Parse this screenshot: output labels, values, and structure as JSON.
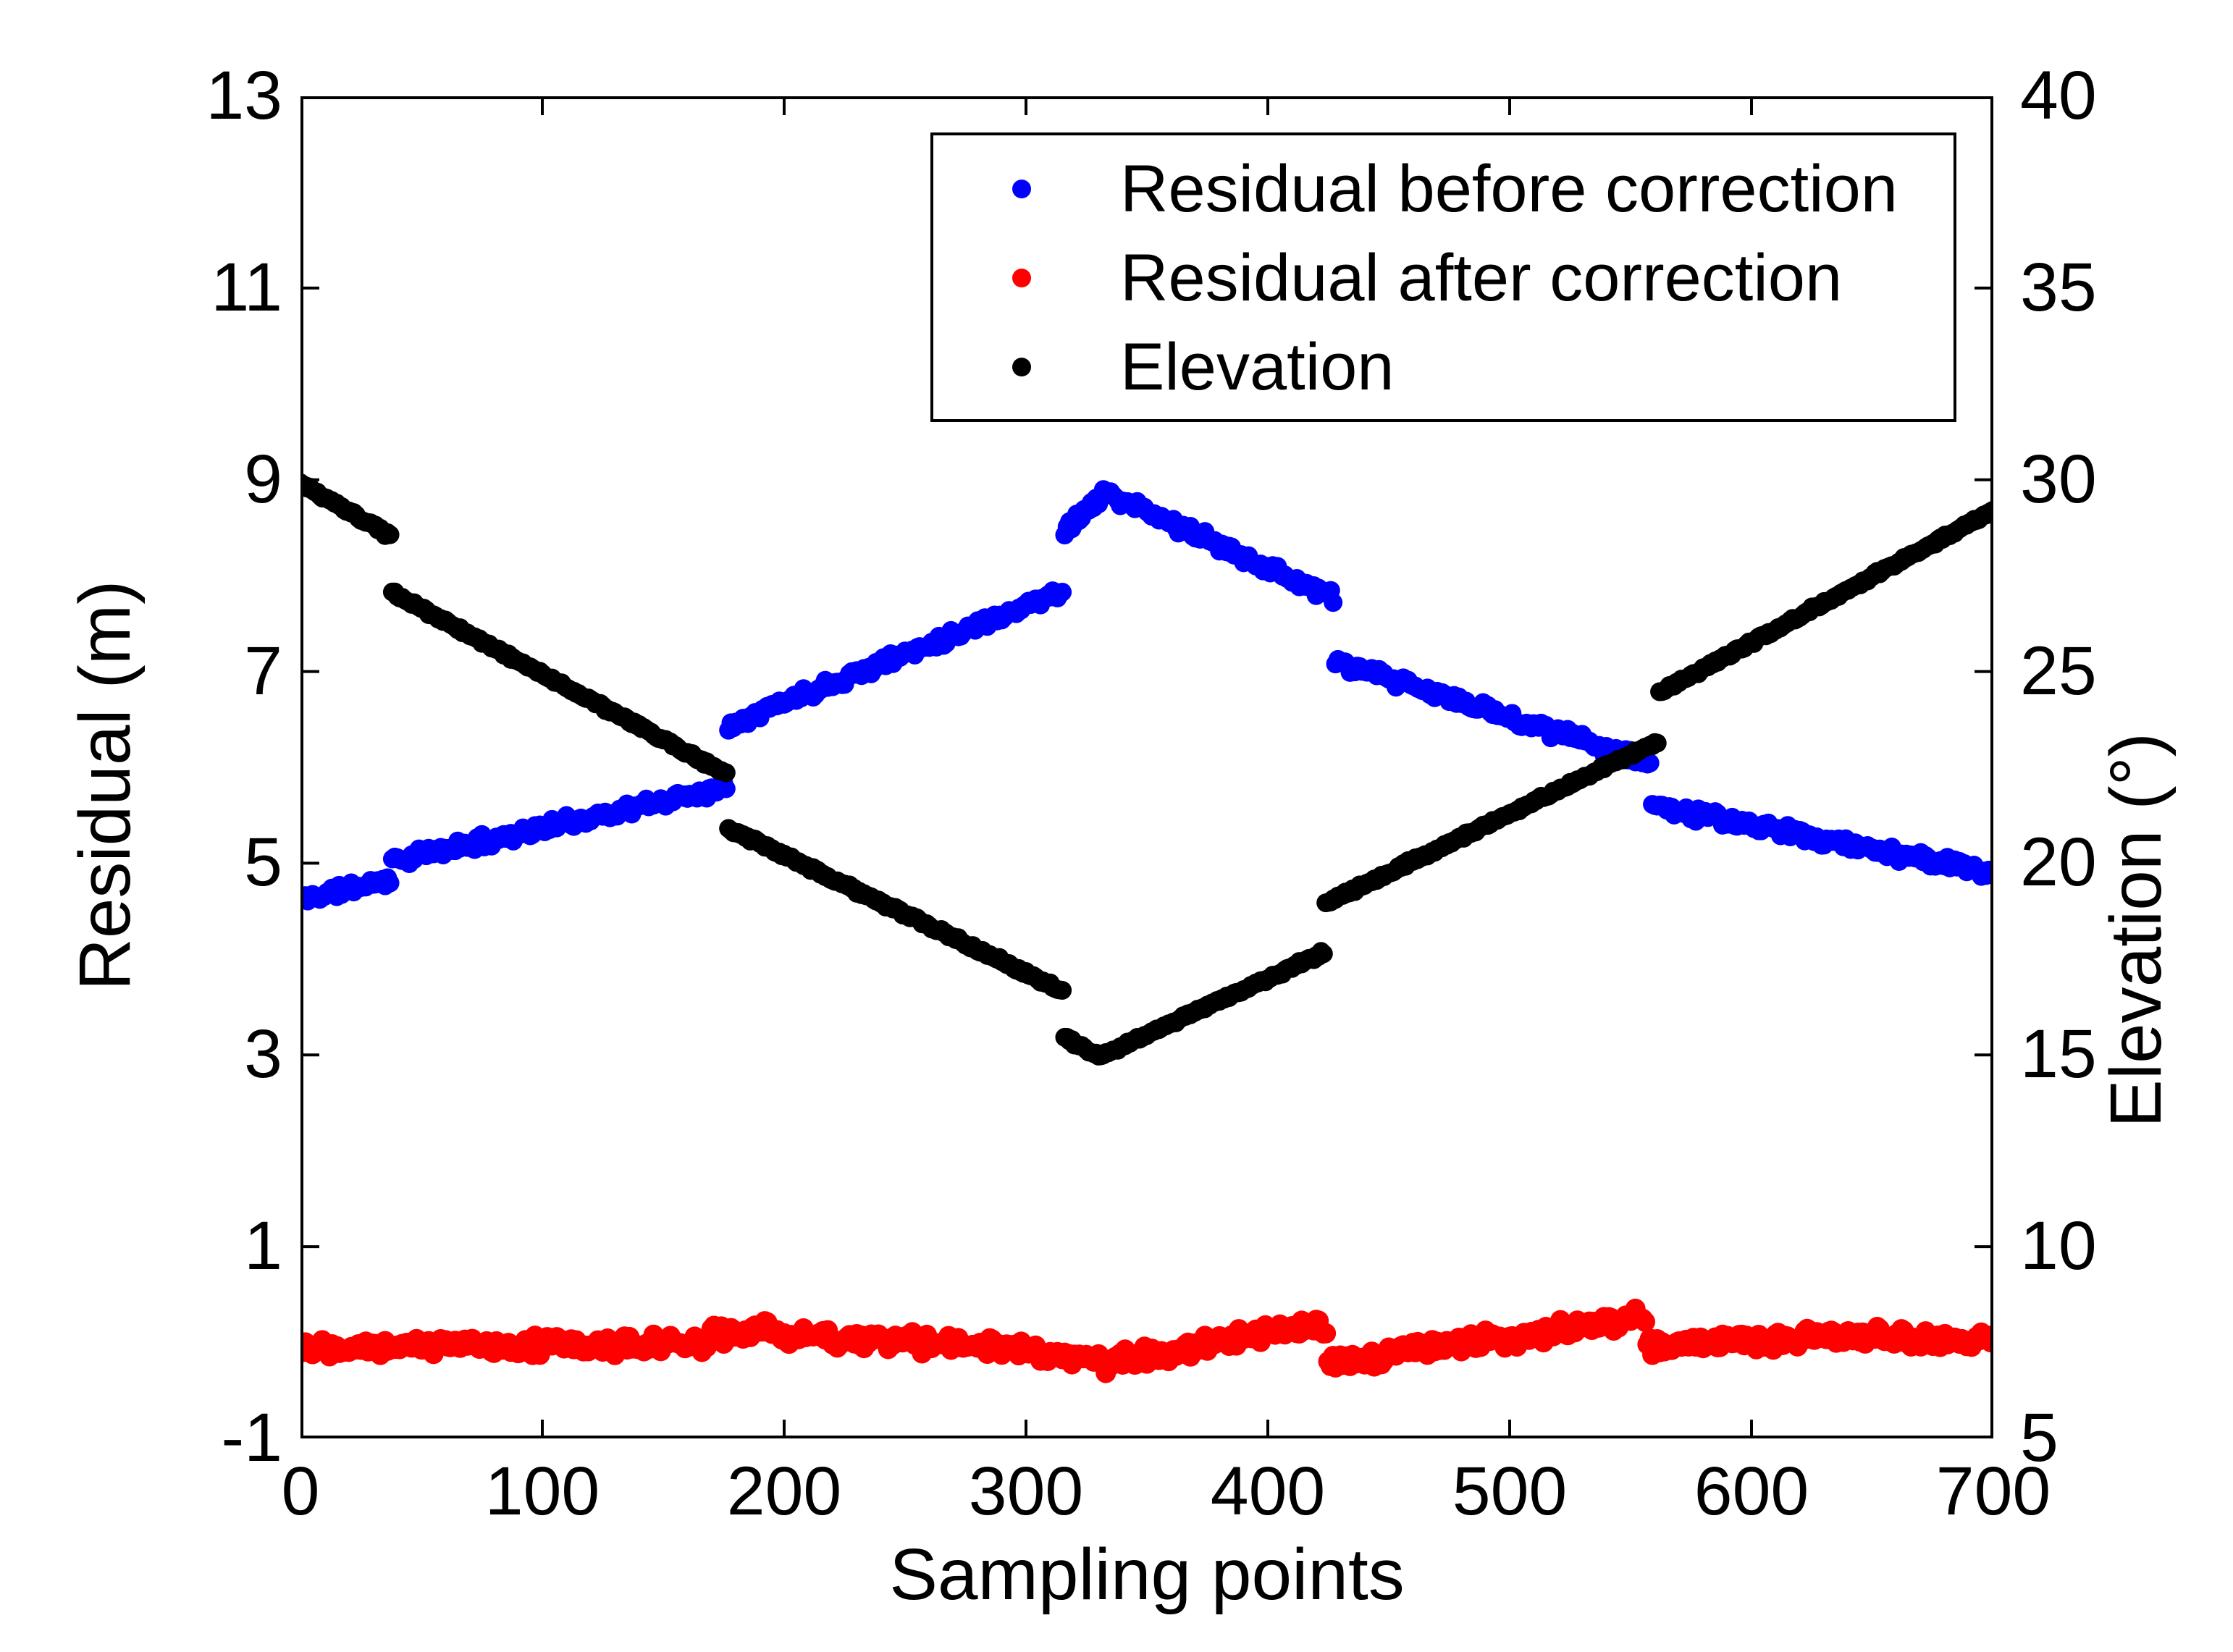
{
  "figure": {
    "background": "#ffffff",
    "text_color": "#000000"
  },
  "chart_data": {
    "type": "scatter",
    "title": "",
    "x_axis": {
      "label": "Sampling points",
      "min": 0,
      "max": 700,
      "ticks": [
        0,
        100,
        200,
        300,
        400,
        500,
        600,
        700
      ],
      "grid": false
    },
    "left_axis": {
      "label": "Residual (m)",
      "min": -1,
      "max": 13,
      "ticks": [
        13,
        11,
        9,
        7,
        5,
        3,
        1,
        -1
      ],
      "grid": false
    },
    "right_axis": {
      "label": "Elevation (°)",
      "min": 5,
      "max": 40,
      "ticks": [
        40,
        35,
        30,
        25,
        20,
        15,
        10,
        5
      ],
      "grid": false
    },
    "legend": {
      "position": "top-center-inside",
      "border_color": "#000000",
      "background": "#ffffff"
    },
    "sampling": {
      "x_step": 1,
      "points_per_series": 701
    },
    "series": [
      {
        "name": "Residual before correction",
        "color": "#0000ff",
        "axis": "left",
        "marker_radius_px": 13,
        "noise": 0.04,
        "seed": 11,
        "segments": [
          {
            "x0": 0,
            "y0": 4.62,
            "x1": 38,
            "y1": 4.84
          },
          {
            "x0": 38,
            "y0": 5.02,
            "x1": 177,
            "y1": 5.8
          },
          {
            "x0": 177,
            "y0": 6.45,
            "x1": 316,
            "y1": 7.85
          },
          {
            "x0": 316,
            "y0": 8.48,
            "x1": 333,
            "y1": 8.86
          },
          {
            "x0": 333,
            "y0": 8.86,
            "x1": 428,
            "y1": 7.76
          },
          {
            "x0": 428,
            "y0": 7.1,
            "x1": 559,
            "y1": 6.05
          },
          {
            "x0": 559,
            "y0": 5.6,
            "x1": 700,
            "y1": 4.9
          }
        ]
      },
      {
        "name": "Residual after correction",
        "color": "#ff0000",
        "axis": "left",
        "marker_radius_px": 14,
        "noise": 0.06,
        "seed": 22,
        "segments": [
          {
            "x0": 0,
            "y0": -0.03,
            "x1": 170,
            "y1": -0.02
          },
          {
            "x0": 170,
            "y0": 0.1,
            "x1": 200,
            "y1": 0.12
          },
          {
            "x0": 200,
            "y0": 0.08,
            "x1": 300,
            "y1": -0.06
          },
          {
            "x0": 300,
            "y0": -0.1,
            "x1": 337,
            "y1": -0.22
          },
          {
            "x0": 337,
            "y0": -0.18,
            "x1": 425,
            "y1": 0.18
          },
          {
            "x0": 425,
            "y0": -0.22,
            "x1": 557,
            "y1": 0.28
          },
          {
            "x0": 557,
            "y0": -0.05,
            "x1": 640,
            "y1": 0.08
          },
          {
            "x0": 640,
            "y0": 0.06,
            "x1": 700,
            "y1": 0.02
          }
        ]
      },
      {
        "name": "Elevation",
        "color": "#000000",
        "axis": "right",
        "marker_radius_px": 13,
        "noise": 0.035,
        "seed": 33,
        "segments": [
          {
            "x0": 0,
            "y0": 29.9,
            "x1": 38,
            "y1": 28.5
          },
          {
            "x0": 38,
            "y0": 27.05,
            "x1": 177,
            "y1": 22.3
          },
          {
            "x0": 177,
            "y0": 20.9,
            "x1": 316,
            "y1": 16.65
          },
          {
            "x0": 316,
            "y0": 15.45,
            "x1": 330,
            "y1": 14.95
          },
          {
            "x0": 330,
            "y0": 14.95,
            "x1": 424,
            "y1": 17.7
          },
          {
            "x0": 424,
            "y0": 18.95,
            "x1": 562,
            "y1": 23.2
          },
          {
            "x0": 562,
            "y0": 24.45,
            "x1": 700,
            "y1": 29.2
          }
        ]
      }
    ]
  }
}
